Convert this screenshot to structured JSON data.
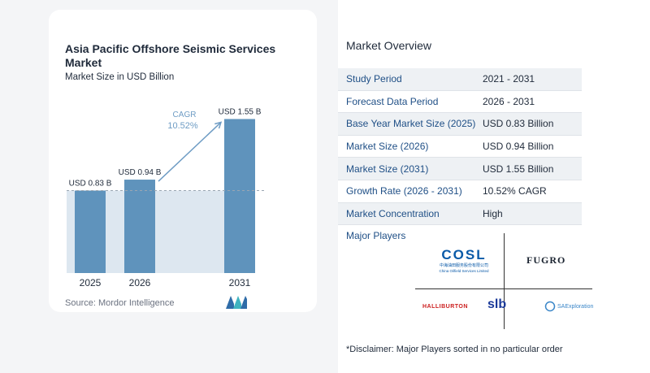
{
  "chart_data": {
    "type": "bar",
    "title": "Asia Pacific Offshore Seismic Services Market",
    "subtitle": "Market Size in USD Billion",
    "categories": [
      "2025",
      "2026",
      "2031"
    ],
    "values": [
      0.83,
      0.94,
      1.55
    ],
    "value_labels": [
      "USD 0.83 B",
      "USD 0.94 B",
      "USD 1.55 B"
    ],
    "ylim": [
      0,
      1.75
    ],
    "cagr_label": "CAGR",
    "cagr_value": "10.52%",
    "bar_color": "#5f93bc",
    "reference_line_color": "#9aa6b2",
    "shade_color": "#dde7f0",
    "source": "Source: Mordor Intelligence"
  },
  "overview": {
    "title": "Market Overview",
    "rows": [
      {
        "label": "Study Period",
        "value": "2021 - 2031"
      },
      {
        "label": "Forecast Data Period",
        "value": "2026 - 2031"
      },
      {
        "label": "Base Year Market Size (2025)",
        "value": "USD 0.83 Billion"
      },
      {
        "label": "Market Size (2026)",
        "value": "USD 0.94 Billion"
      },
      {
        "label": "Market Size (2031)",
        "value": "USD 1.55 Billion"
      },
      {
        "label": "Growth Rate (2026 - 2031)",
        "value": "10.52% CAGR"
      },
      {
        "label": "Market Concentration",
        "value": "High"
      }
    ]
  },
  "players": {
    "title": "Major Players",
    "logos": {
      "cosl": "COSL",
      "cosl_cn": "中海油田服务股份有限公司",
      "cosl_en": "China Oilfield Services Limited",
      "fugro": "FUGRO",
      "halliburton": "HALLIBURTON",
      "slb": "slb",
      "saexploration": "SAExploration"
    }
  },
  "disclaimer": "*Disclaimer: Major Players sorted in no particular order"
}
